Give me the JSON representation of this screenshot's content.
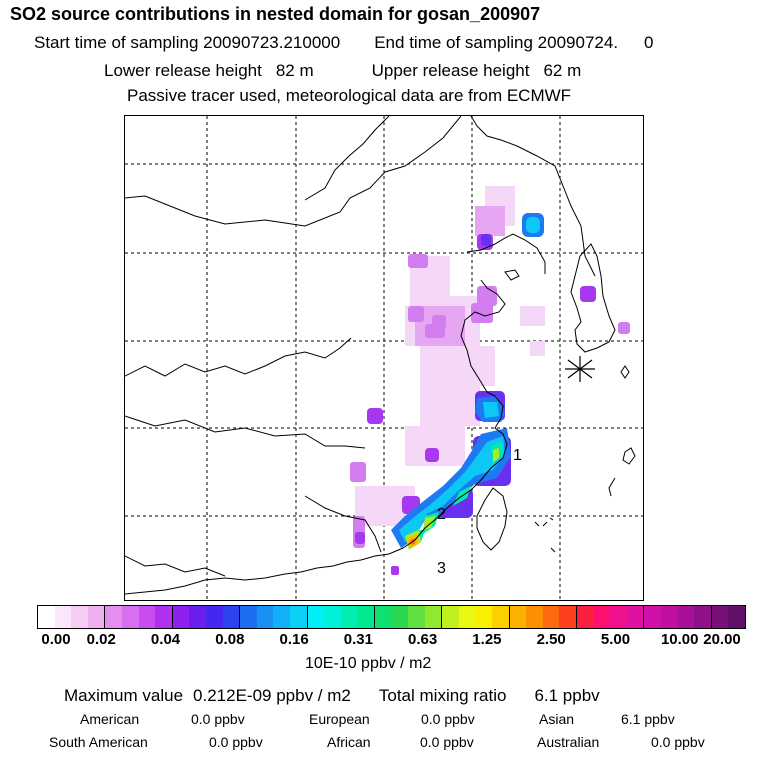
{
  "header": {
    "title": "SO2 source contributions in nested domain for gosan_200907",
    "start_label": "Start time of sampling 20090723.210000",
    "end_label": "End time of sampling 20090724.",
    "end_suffix": "0",
    "lower_label": "Lower release height",
    "lower_value": "82 m",
    "upper_label": "Upper release height",
    "upper_value": "62 m",
    "tracer_note": "Passive tracer used, meteorological data are from ECMWF"
  },
  "map": {
    "site_marker": "star-marker",
    "markers": [
      "1",
      "2",
      "3"
    ]
  },
  "colorbar": {
    "ticks": [
      "0.00",
      "0.02",
      "0.04",
      "0.08",
      "0.16",
      "0.31",
      "0.63",
      "1.25",
      "2.50",
      "5.00",
      "10.00",
      "20.00"
    ],
    "unit": "10E-10 ppbv / m2",
    "colors": [
      "#ffffff",
      "#fbe6fb",
      "#f5ccf6",
      "#efb0f2",
      "#e58ef0",
      "#d86ef0",
      "#c84cf0",
      "#b030f0",
      "#9020f0",
      "#6a1ef0",
      "#4428f0",
      "#2b44f0",
      "#1e6ef2",
      "#1990f4",
      "#12b0f6",
      "#0ad0f6",
      "#00eef6",
      "#00f0d8",
      "#00eeb0",
      "#00e890",
      "#10e070",
      "#28d850",
      "#60e040",
      "#90e830",
      "#c0f020",
      "#e8f810",
      "#f8f000",
      "#fcd000",
      "#fcb000",
      "#fc9000",
      "#fc6a10",
      "#fc4020",
      "#fc2040",
      "#fc1070",
      "#f01090",
      "#e010a0",
      "#d010a8",
      "#c010a0",
      "#a81098",
      "#901088",
      "#781078",
      "#601068"
    ]
  },
  "summary": {
    "max_label": "Maximum value",
    "max_value": "0.212E-09 ppbv / m2",
    "total_label": "Total mixing ratio",
    "total_value": "6.1 ppbv",
    "regions": [
      {
        "name": "American",
        "value": "0.0 ppbv"
      },
      {
        "name": "European",
        "value": "0.0 ppbv"
      },
      {
        "name": "Asian",
        "value": "6.1 ppbv"
      },
      {
        "name": "South American",
        "value": "0.0 ppbv"
      },
      {
        "name": "African",
        "value": "0.0 ppbv"
      },
      {
        "name": "Australian",
        "value": "0.0 ppbv"
      }
    ]
  }
}
